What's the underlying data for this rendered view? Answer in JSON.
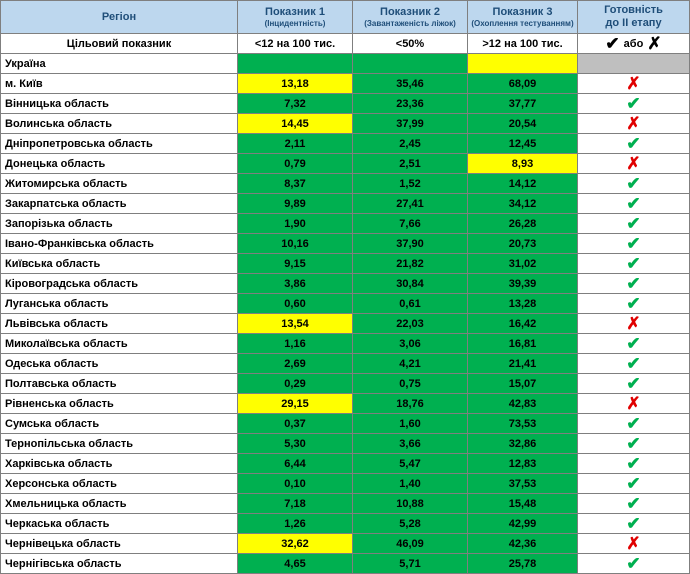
{
  "table": {
    "header": [
      [
        "Регіон"
      ],
      [
        "Показник 1",
        "(Інцидентність)"
      ],
      [
        "Показник 2",
        "(Завантаженість ліжок)"
      ],
      [
        "Показник 3",
        "(Охоплення тестуванням)"
      ],
      [
        "Готовність",
        "до ІІ етапу"
      ]
    ],
    "target": {
      "label": "Цільовий показник",
      "values": [
        "<12 на 100 тис.",
        "<50%",
        ">12 на 100 тис."
      ],
      "status": [
        "✔",
        "або",
        "✗"
      ]
    },
    "colors": {
      "green": "#00b050",
      "yellow": "#ffff00",
      "gray": "#bfbfbf",
      "header": "#bdd7ee"
    },
    "rows": [
      {
        "region": "Україна",
        "values": [
          "",
          "",
          ""
        ],
        "fills": [
          "green",
          "green",
          "yellow"
        ],
        "status": {
          "symbol": "",
          "color": "#000000",
          "fill": "gray"
        }
      },
      {
        "region": "м. Київ",
        "values": [
          "13,18",
          "35,46",
          "68,09"
        ],
        "fills": [
          "yellow",
          "green",
          "green"
        ],
        "status": {
          "symbol": "✗",
          "color": "#e00000"
        }
      },
      {
        "region": "Вінницька область",
        "values": [
          "7,32",
          "23,36",
          "37,77"
        ],
        "fills": [
          "green",
          "green",
          "green"
        ],
        "status": {
          "symbol": "✔",
          "color": "#00b050"
        }
      },
      {
        "region": "Волинська область",
        "values": [
          "14,45",
          "37,99",
          "20,54"
        ],
        "fills": [
          "yellow",
          "green",
          "green"
        ],
        "status": {
          "symbol": "✗",
          "color": "#e00000"
        }
      },
      {
        "region": "Дніпропетровська область",
        "values": [
          "2,11",
          "2,45",
          "12,45"
        ],
        "fills": [
          "green",
          "green",
          "green"
        ],
        "status": {
          "symbol": "✔",
          "color": "#00b050"
        }
      },
      {
        "region": "Донецька область",
        "values": [
          "0,79",
          "2,51",
          "8,93"
        ],
        "fills": [
          "green",
          "green",
          "yellow"
        ],
        "status": {
          "symbol": "✗",
          "color": "#e00000"
        }
      },
      {
        "region": "Житомирська область",
        "values": [
          "8,37",
          "1,52",
          "14,12"
        ],
        "fills": [
          "green",
          "green",
          "green"
        ],
        "status": {
          "symbol": "✔",
          "color": "#00b050"
        }
      },
      {
        "region": "Закарпатська область",
        "values": [
          "9,89",
          "27,41",
          "34,12"
        ],
        "fills": [
          "green",
          "green",
          "green"
        ],
        "status": {
          "symbol": "✔",
          "color": "#00b050"
        }
      },
      {
        "region": "Запорізька область",
        "values": [
          "1,90",
          "7,66",
          "26,28"
        ],
        "fills": [
          "green",
          "green",
          "green"
        ],
        "status": {
          "symbol": "✔",
          "color": "#00b050"
        }
      },
      {
        "region": "Івано-Франківська область",
        "values": [
          "10,16",
          "37,90",
          "20,73"
        ],
        "fills": [
          "green",
          "green",
          "green"
        ],
        "status": {
          "symbol": "✔",
          "color": "#00b050"
        }
      },
      {
        "region": "Київська область",
        "values": [
          "9,15",
          "21,82",
          "31,02"
        ],
        "fills": [
          "green",
          "green",
          "green"
        ],
        "status": {
          "symbol": "✔",
          "color": "#00b050"
        }
      },
      {
        "region": "Кіровоградська область",
        "values": [
          "3,86",
          "30,84",
          "39,39"
        ],
        "fills": [
          "green",
          "green",
          "green"
        ],
        "status": {
          "symbol": "✔",
          "color": "#00b050"
        }
      },
      {
        "region": "Луганська область",
        "values": [
          "0,60",
          "0,61",
          "13,28"
        ],
        "fills": [
          "green",
          "green",
          "green"
        ],
        "status": {
          "symbol": "✔",
          "color": "#00b050"
        }
      },
      {
        "region": "Львівська область",
        "values": [
          "13,54",
          "22,03",
          "16,42"
        ],
        "fills": [
          "yellow",
          "green",
          "green"
        ],
        "status": {
          "symbol": "✗",
          "color": "#e00000"
        }
      },
      {
        "region": "Миколаївська область",
        "values": [
          "1,16",
          "3,06",
          "16,81"
        ],
        "fills": [
          "green",
          "green",
          "green"
        ],
        "status": {
          "symbol": "✔",
          "color": "#00b050"
        }
      },
      {
        "region": "Одеська область",
        "values": [
          "2,69",
          "4,21",
          "21,41"
        ],
        "fills": [
          "green",
          "green",
          "green"
        ],
        "status": {
          "symbol": "✔",
          "color": "#00b050"
        }
      },
      {
        "region": "Полтавська область",
        "values": [
          "0,29",
          "0,75",
          "15,07"
        ],
        "fills": [
          "green",
          "green",
          "green"
        ],
        "status": {
          "symbol": "✔",
          "color": "#00b050"
        }
      },
      {
        "region": "Рівненська область",
        "values": [
          "29,15",
          "18,76",
          "42,83"
        ],
        "fills": [
          "yellow",
          "green",
          "green"
        ],
        "status": {
          "symbol": "✗",
          "color": "#e00000"
        }
      },
      {
        "region": "Сумська область",
        "values": [
          "0,37",
          "1,60",
          "73,53"
        ],
        "fills": [
          "green",
          "green",
          "green"
        ],
        "status": {
          "symbol": "✔",
          "color": "#00b050"
        }
      },
      {
        "region": "Тернопільська область",
        "values": [
          "5,30",
          "3,66",
          "32,86"
        ],
        "fills": [
          "green",
          "green",
          "green"
        ],
        "status": {
          "symbol": "✔",
          "color": "#00b050"
        }
      },
      {
        "region": "Харківська область",
        "values": [
          "6,44",
          "5,47",
          "12,83"
        ],
        "fills": [
          "green",
          "green",
          "green"
        ],
        "status": {
          "symbol": "✔",
          "color": "#00b050"
        }
      },
      {
        "region": "Херсонська область",
        "values": [
          "0,10",
          "1,40",
          "37,53"
        ],
        "fills": [
          "green",
          "green",
          "green"
        ],
        "status": {
          "symbol": "✔",
          "color": "#00b050"
        }
      },
      {
        "region": "Хмельницька область",
        "values": [
          "7,18",
          "10,88",
          "15,48"
        ],
        "fills": [
          "green",
          "green",
          "green"
        ],
        "status": {
          "symbol": "✔",
          "color": "#00b050"
        }
      },
      {
        "region": "Черкаська область",
        "values": [
          "1,26",
          "5,28",
          "42,99"
        ],
        "fills": [
          "green",
          "green",
          "green"
        ],
        "status": {
          "symbol": "✔",
          "color": "#00b050"
        }
      },
      {
        "region": "Чернівецька область",
        "values": [
          "32,62",
          "46,09",
          "42,36"
        ],
        "fills": [
          "yellow",
          "green",
          "green"
        ],
        "status": {
          "symbol": "✗",
          "color": "#e00000"
        }
      },
      {
        "region": "Чернігівська область",
        "values": [
          "4,65",
          "5,71",
          "25,78"
        ],
        "fills": [
          "green",
          "green",
          "green"
        ],
        "status": {
          "symbol": "✔",
          "color": "#00b050"
        }
      }
    ]
  }
}
